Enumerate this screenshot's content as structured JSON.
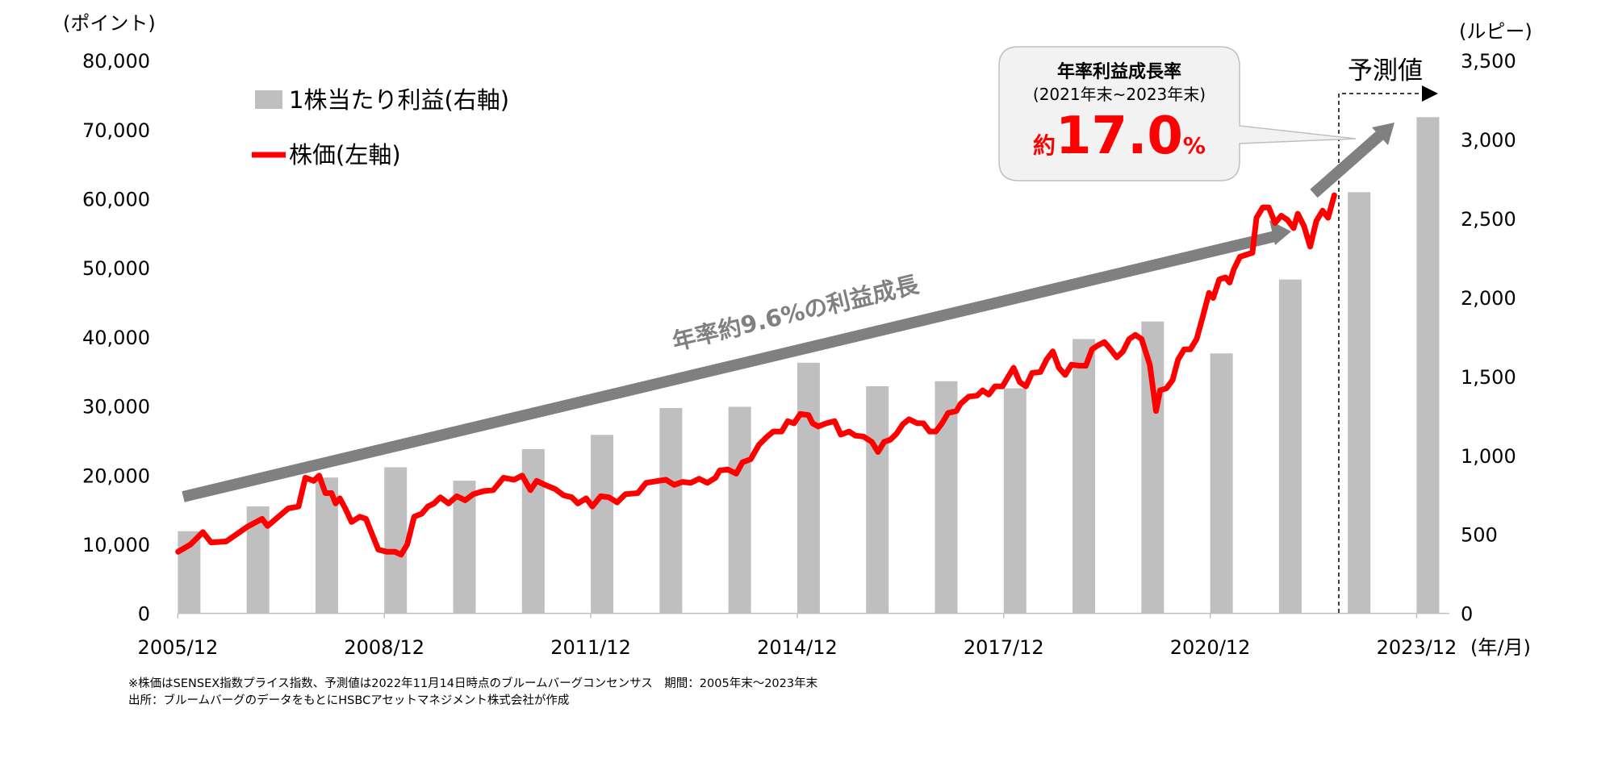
{
  "chart_data": {
    "type": "bar+line",
    "left_axis": {
      "label": "(ポイント)",
      "range": [
        0,
        80000
      ],
      "ticks": [
        "0",
        "10,000",
        "20,000",
        "30,000",
        "40,000",
        "50,000",
        "60,000",
        "70,000",
        "80,000"
      ],
      "tick_values": [
        0,
        10000,
        20000,
        30000,
        40000,
        50000,
        60000,
        70000,
        80000
      ]
    },
    "right_axis": {
      "label": "(ルピー)",
      "range": [
        0,
        3500
      ],
      "ticks": [
        "0",
        "500",
        "1,000",
        "1,500",
        "2,000",
        "2,500",
        "3,000",
        "3,500"
      ],
      "tick_values": [
        0,
        500,
        1000,
        1500,
        2000,
        2500,
        3000,
        3500
      ]
    },
    "x_axis": {
      "label": "(年/月)",
      "ticks": [
        "2005/12",
        "2008/12",
        "2011/12",
        "2014/12",
        "2017/12",
        "2020/12",
        "2023/12"
      ],
      "tick_years": [
        2005,
        2008,
        2011,
        2014,
        2017,
        2020,
        2023
      ]
    },
    "legend": {
      "bars": "1株当たり利益(右軸)",
      "line": "株価(左軸)",
      "position": "top-left"
    },
    "bars": {
      "name": "1株当たり利益(右軸)",
      "color": "#bfbfbf",
      "years": [
        2005,
        2006,
        2007,
        2008,
        2009,
        2010,
        2011,
        2012,
        2013,
        2014,
        2015,
        2016,
        2017,
        2018,
        2019,
        2020,
        2021,
        2022,
        2023
      ],
      "values": [
        520,
        677,
        860,
        925,
        840,
        1040,
        1130,
        1300,
        1308,
        1587,
        1438,
        1470,
        1425,
        1737,
        1848,
        1646,
        2114,
        2667,
        3142
      ]
    },
    "line": {
      "name": "株価(左軸)",
      "color": "#ff0000",
      "x": [
        2005.92,
        2006.1,
        2006.28,
        2006.4,
        2006.62,
        2006.92,
        2007.14,
        2007.22,
        2007.52,
        2007.67,
        2007.77,
        2007.89,
        2007.97,
        2008.06,
        2008.15,
        2008.21,
        2008.27,
        2008.35,
        2008.44,
        2008.56,
        2008.65,
        2008.74,
        2008.83,
        2008.95,
        2009.07,
        2009.16,
        2009.25,
        2009.35,
        2009.46,
        2009.55,
        2009.64,
        2009.73,
        2009.85,
        2009.97,
        2010.09,
        2010.21,
        2010.36,
        2010.5,
        2010.65,
        2010.8,
        2010.92,
        2011.04,
        2011.13,
        2011.25,
        2011.4,
        2011.52,
        2011.64,
        2011.73,
        2011.85,
        2011.94,
        2012.06,
        2012.18,
        2012.3,
        2012.42,
        2012.6,
        2012.72,
        2012.9,
        2013.01,
        2013.13,
        2013.25,
        2013.37,
        2013.49,
        2013.61,
        2013.73,
        2013.79,
        2013.91,
        2014.03,
        2014.12,
        2014.24,
        2014.36,
        2014.48,
        2014.57,
        2014.69,
        2014.78,
        2014.87,
        2014.96,
        2015.08,
        2015.14,
        2015.22,
        2015.34,
        2015.46,
        2015.55,
        2015.67,
        2015.76,
        2015.88,
        2016.0,
        2016.09,
        2016.18,
        2016.27,
        2016.36,
        2016.45,
        2016.54,
        2016.66,
        2016.75,
        2016.84,
        2016.93,
        2017.02,
        2017.11,
        2017.23,
        2017.29,
        2017.41,
        2017.53,
        2017.61,
        2017.7,
        2017.79,
        2017.9,
        2017.97,
        2018.06,
        2018.15,
        2018.24,
        2018.33,
        2018.45,
        2018.54,
        2018.63,
        2018.72,
        2018.81,
        2018.9,
        2019.02,
        2019.11,
        2019.2,
        2019.29,
        2019.38,
        2019.47,
        2019.56,
        2019.65,
        2019.74,
        2019.83,
        2019.92,
        2020.04,
        2020.13,
        2020.19,
        2020.28,
        2020.37,
        2020.45,
        2020.54,
        2020.63,
        2020.72,
        2020.81,
        2020.9,
        2020.96,
        2021.05,
        2021.14,
        2021.2,
        2021.26,
        2021.35,
        2021.44,
        2021.53,
        2021.59,
        2021.68,
        2021.77,
        2021.86,
        2021.95,
        2022.04,
        2022.13,
        2022.19,
        2022.28,
        2022.37,
        2022.46,
        2022.55,
        2022.63,
        2022.72
      ],
      "y": [
        8920,
        9960,
        11750,
        10260,
        10410,
        12490,
        13680,
        12640,
        15170,
        15460,
        19630,
        19180,
        19930,
        17400,
        17400,
        15910,
        16650,
        15170,
        13230,
        13980,
        13680,
        11450,
        9220,
        8920,
        8920,
        8480,
        9960,
        13980,
        14420,
        15460,
        15910,
        16800,
        15910,
        16950,
        16360,
        17250,
        17700,
        17840,
        19630,
        19330,
        19930,
        17840,
        19180,
        18590,
        17990,
        17100,
        16800,
        15910,
        16650,
        15460,
        16950,
        16800,
        16060,
        17250,
        17400,
        18880,
        19180,
        19330,
        18590,
        19030,
        18880,
        19480,
        18880,
        19630,
        20670,
        20820,
        20220,
        21860,
        22310,
        24390,
        25580,
        26320,
        26320,
        27810,
        27510,
        28850,
        28700,
        27510,
        27060,
        27510,
        27810,
        25870,
        26320,
        25730,
        25580,
        24830,
        23350,
        24830,
        25130,
        26020,
        27360,
        28100,
        27510,
        27510,
        26320,
        26320,
        27510,
        29000,
        29290,
        30330,
        31380,
        31520,
        32270,
        31670,
        32860,
        32860,
        34050,
        35540,
        33460,
        32860,
        34800,
        34940,
        36730,
        37920,
        35540,
        34500,
        35990,
        35840,
        35840,
        38220,
        38810,
        39260,
        38220,
        37030,
        37920,
        39700,
        40300,
        39700,
        35990,
        29290,
        32270,
        32570,
        33750,
        36730,
        38220,
        38220,
        39700,
        42970,
        46390,
        45650,
        48330,
        48620,
        47880,
        49810,
        51600,
        51900,
        52190,
        57250,
        58740,
        58740,
        56510,
        57550,
        56950,
        55760,
        57840,
        56060,
        53090,
        56800,
        58290,
        57250,
        60520
      ]
    },
    "annotations": {
      "trend_label": "年率約9.6%の利益成長",
      "forecast_label": "予測値",
      "callout": {
        "title": "年率利益成長率",
        "period": "(2021年末~2023年末)",
        "prefix": "約",
        "value": "17.0",
        "unit": "%"
      }
    },
    "footnotes": [
      "※株価はSENSEX指数プライス指数、予測値は2022年11月14日時点のブルームバーグコンセンサス　期間：2005年末～2023年末",
      "出所：ブルームバーグのデータをもとにHSBCアセットマネジメント株式会社が作成"
    ]
  }
}
